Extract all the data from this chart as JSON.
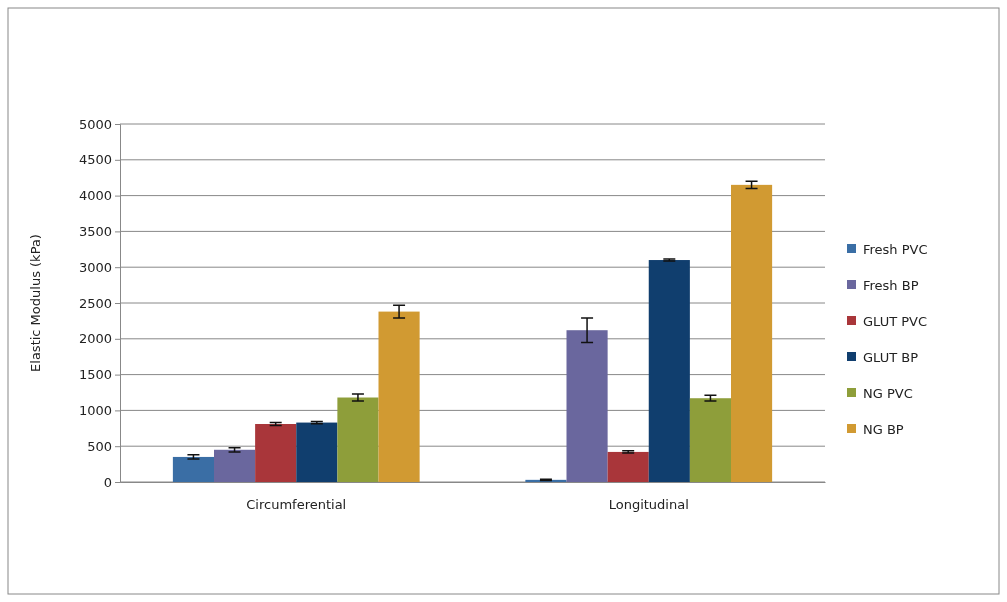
{
  "chart_data": {
    "type": "bar",
    "ylabel": "Elastic Modulus (kPa)",
    "categories": [
      "Circumferential",
      "Longitudinal"
    ],
    "series": [
      {
        "name": "Fresh PVC",
        "color": "#3a6ea5",
        "values": [
          350,
          30
        ],
        "errors": [
          30,
          10
        ]
      },
      {
        "name": "Fresh BP",
        "color": "#6a679e",
        "values": [
          450,
          2120
        ],
        "errors": [
          30,
          170
        ]
      },
      {
        "name": "GLUT PVC",
        "color": "#a9363a",
        "values": [
          810,
          420
        ],
        "errors": [
          20,
          15
        ]
      },
      {
        "name": "GLUT BP",
        "color": "#103e6e",
        "values": [
          830,
          3100
        ],
        "errors": [
          15,
          15
        ]
      },
      {
        "name": "NG PVC",
        "color": "#8e9e3a",
        "values": [
          1180,
          1170
        ],
        "errors": [
          50,
          40
        ]
      },
      {
        "name": "NG BP",
        "color": "#d19a32",
        "values": [
          2380,
          4150
        ],
        "errors": [
          90,
          50
        ]
      }
    ],
    "ylim": [
      0,
      5000
    ],
    "yticks": [
      0,
      500,
      1000,
      1500,
      2000,
      2500,
      3000,
      3500,
      4000,
      4500,
      5000
    ],
    "grid": "y",
    "legend": "right"
  }
}
